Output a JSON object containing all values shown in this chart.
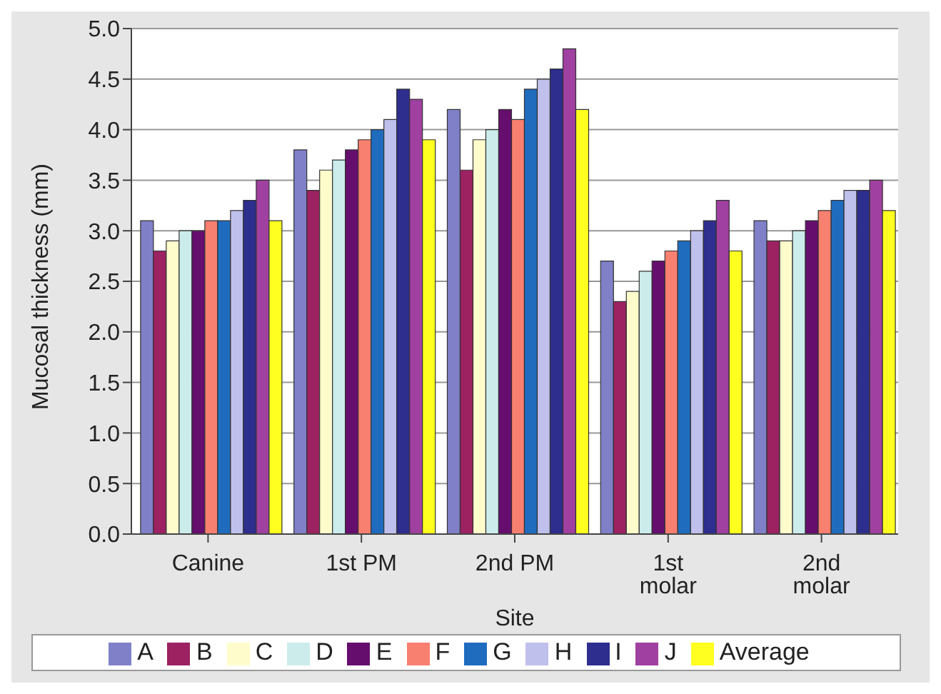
{
  "chart_data": {
    "type": "bar",
    "xlabel": "Site",
    "ylabel": "Mucosal thickness (mm)",
    "categories": [
      "Canine",
      "1st PM",
      "2nd PM",
      "1st molar",
      "2nd molar"
    ],
    "series": [
      {
        "name": "A",
        "color": "#8080c8",
        "values": [
          3.1,
          3.8,
          4.2,
          2.7,
          3.1
        ]
      },
      {
        "name": "B",
        "color": "#9c2262",
        "values": [
          2.8,
          3.4,
          3.6,
          2.3,
          2.9
        ]
      },
      {
        "name": "C",
        "color": "#fffccc",
        "values": [
          2.9,
          3.6,
          3.9,
          2.4,
          2.9
        ]
      },
      {
        "name": "D",
        "color": "#ccecec",
        "values": [
          3.0,
          3.7,
          4.0,
          2.6,
          3.0
        ]
      },
      {
        "name": "E",
        "color": "#660e6e",
        "values": [
          3.0,
          3.8,
          4.2,
          2.7,
          3.1
        ]
      },
      {
        "name": "F",
        "color": "#f88070",
        "values": [
          3.1,
          3.9,
          4.1,
          2.8,
          3.2
        ]
      },
      {
        "name": "G",
        "color": "#1f6cbf",
        "values": [
          3.1,
          4.0,
          4.4,
          2.9,
          3.3
        ]
      },
      {
        "name": "H",
        "color": "#c0c0ec",
        "values": [
          3.2,
          4.1,
          4.5,
          3.0,
          3.4
        ]
      },
      {
        "name": "I",
        "color": "#2e2e8e",
        "values": [
          3.3,
          4.4,
          4.6,
          3.1,
          3.4
        ]
      },
      {
        "name": "J",
        "color": "#a040a0",
        "values": [
          3.5,
          4.3,
          4.8,
          3.3,
          3.5
        ]
      },
      {
        "name": "Average",
        "color": "#ffff20",
        "values": [
          3.1,
          3.9,
          4.2,
          2.8,
          3.2
        ]
      }
    ],
    "ylim": [
      0,
      5
    ],
    "yticks": [
      {
        "value": 0,
        "label": "0.0"
      },
      {
        "value": 0.5,
        "label": "0.5"
      },
      {
        "value": 1,
        "label": "1.0"
      },
      {
        "value": 1.5,
        "label": "1.5"
      },
      {
        "value": 2,
        "label": "2.0"
      },
      {
        "value": 2.5,
        "label": "2.5"
      },
      {
        "value": 3,
        "label": "3.0"
      },
      {
        "value": 3.5,
        "label": "3.5"
      },
      {
        "value": 4,
        "label": "4.0"
      },
      {
        "value": 4.5,
        "label": "4.5"
      },
      {
        "value": 5,
        "label": "5.0"
      }
    ],
    "grid": "y",
    "legend": "bottom"
  }
}
